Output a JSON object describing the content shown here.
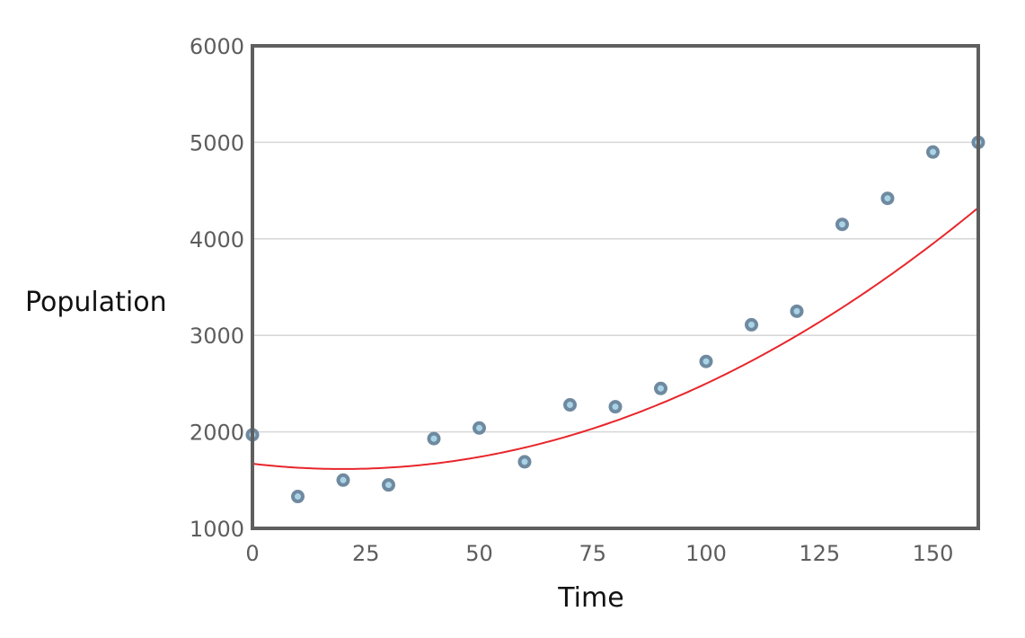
{
  "chart_data": {
    "type": "scatter",
    "title": "",
    "xlabel": "Time",
    "ylabel": "Population",
    "xlim": [
      0,
      160
    ],
    "ylim": [
      1000,
      6000
    ],
    "x_ticks": [
      0,
      25,
      50,
      75,
      100,
      125,
      150
    ],
    "y_ticks": [
      1000,
      2000,
      3000,
      4000,
      5000,
      6000
    ],
    "grid": "horizontal",
    "legend": "none",
    "series": [
      {
        "x": [
          0,
          10,
          20,
          30,
          40,
          50,
          60,
          70,
          80,
          90,
          100,
          110,
          120,
          130,
          140,
          150,
          160
        ],
        "y": [
          1970,
          1330,
          1500,
          1450,
          1930,
          2040,
          1690,
          2280,
          2260,
          2450,
          2730,
          3110,
          3250,
          4150,
          4420,
          4900,
          5000
        ]
      }
    ],
    "fit_line": {
      "kind": "quadratic",
      "coefficients": [
        1670,
        -5.5,
        0.138
      ]
    },
    "colors": {
      "point_fill": "#a9d3e6",
      "point_stroke": "#6f8aa0",
      "fit_line": "#e8262b",
      "frame": "#5f5f5f",
      "grid": "#d6d6d6"
    }
  }
}
